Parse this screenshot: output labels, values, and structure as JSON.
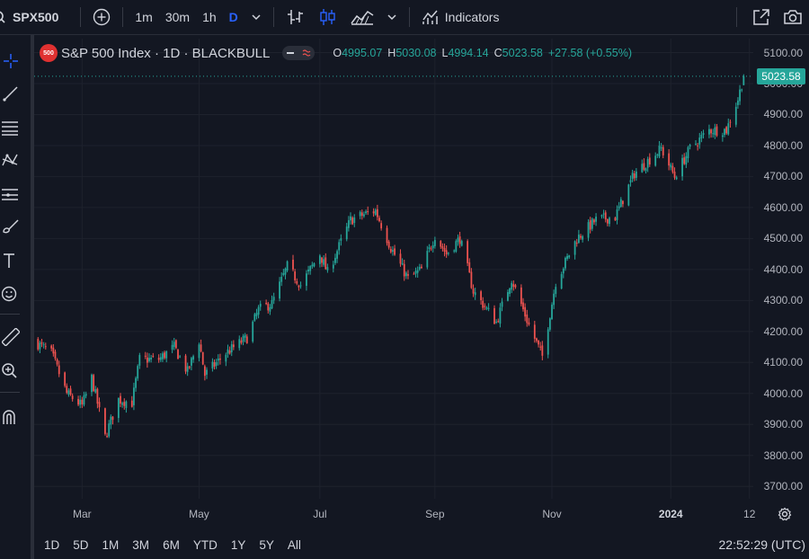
{
  "toolbar": {
    "symbol": "SPX500",
    "intervals": [
      "1m",
      "30m",
      "1h",
      "D"
    ],
    "active_interval": "D",
    "indicators_label": "Indicators"
  },
  "legend": {
    "badge": "500",
    "title": "S&P 500 Index · 1D · BLACKBULL",
    "open_label": "O",
    "open": "4995.07",
    "high_label": "H",
    "high": "5030.08",
    "low_label": "L",
    "low": "4994.14",
    "close_label": "C",
    "close": "5023.58",
    "change": "+27.58 (+0.55%)"
  },
  "last_price": "5023.58",
  "colors": {
    "up": "#26a69a",
    "down": "#ef5350",
    "background": "#131722",
    "grid": "#1e222d"
  },
  "left_tools": [
    "crosshair-icon",
    "trend-line-icon",
    "fib-icon",
    "pattern-icon",
    "forecast-icon",
    "brush-icon",
    "text-icon",
    "emoji-icon",
    "ruler-icon",
    "zoom-in-icon",
    "magnet-icon"
  ],
  "bottom": {
    "ranges": [
      "1D",
      "5D",
      "1M",
      "3M",
      "6M",
      "YTD",
      "1Y",
      "5Y",
      "All"
    ],
    "clock": "22:52:29 (UTC)"
  },
  "chart_data": {
    "type": "candlestick",
    "title": "S&P 500 Index · 1D · BLACKBULL",
    "ylim": [
      3660,
      5145
    ],
    "y_ticks": [
      5100,
      5000,
      4900,
      4800,
      4700,
      4600,
      4500,
      4400,
      4300,
      4200,
      4100,
      4000,
      3900,
      3800,
      3700
    ],
    "y_tick_labels": [
      "5100.00",
      "5000.00",
      "4900.00",
      "4800.00",
      "4700.00",
      "4600.00",
      "4500.00",
      "4400.00",
      "4300.00",
      "4200.00",
      "4100.00",
      "4000.00",
      "3900.00",
      "3800.00",
      "3700.00"
    ],
    "x_tick_labels": [
      {
        "label": "Mar",
        "date": "2023-03-01",
        "bold": false
      },
      {
        "label": "May",
        "date": "2023-05-01",
        "bold": false
      },
      {
        "label": "Jul",
        "date": "2023-07-03",
        "bold": false
      },
      {
        "label": "Sep",
        "date": "2023-09-01",
        "bold": false
      },
      {
        "label": "Nov",
        "date": "2023-11-01",
        "bold": false
      },
      {
        "label": "2024",
        "date": "2024-01-02",
        "bold": true
      },
      {
        "label": "12",
        "date": "2024-02-12",
        "bold": false
      }
    ],
    "x_range": [
      "2023-02-04",
      "2024-02-14"
    ],
    "close_anchors": [
      [
        "2023-02-06",
        4160
      ],
      [
        "2023-02-13",
        4130
      ],
      [
        "2023-02-21",
        4000
      ],
      [
        "2023-03-01",
        3960
      ],
      [
        "2023-03-06",
        4050
      ],
      [
        "2023-03-13",
        3860
      ],
      [
        "2023-03-20",
        3980
      ],
      [
        "2023-03-27",
        3970
      ],
      [
        "2023-03-31",
        4110
      ],
      [
        "2023-04-10",
        4110
      ],
      [
        "2023-04-18",
        4150
      ],
      [
        "2023-04-25",
        4070
      ],
      [
        "2023-05-01",
        4170
      ],
      [
        "2023-05-04",
        4060
      ],
      [
        "2023-05-15",
        4130
      ],
      [
        "2023-05-26",
        4180
      ],
      [
        "2023-06-01",
        4270
      ],
      [
        "2023-06-08",
        4290
      ],
      [
        "2023-06-16",
        4410
      ],
      [
        "2023-06-23",
        4350
      ],
      [
        "2023-07-03",
        4450
      ],
      [
        "2023-07-07",
        4390
      ],
      [
        "2023-07-19",
        4560
      ],
      [
        "2023-07-27",
        4580
      ],
      [
        "2023-08-01",
        4590
      ],
      [
        "2023-08-09",
        4470
      ],
      [
        "2023-08-18",
        4370
      ],
      [
        "2023-08-25",
        4400
      ],
      [
        "2023-09-01",
        4510
      ],
      [
        "2023-09-07",
        4450
      ],
      [
        "2023-09-14",
        4500
      ],
      [
        "2023-09-21",
        4330
      ],
      [
        "2023-10-03",
        4230
      ],
      [
        "2023-10-11",
        4370
      ],
      [
        "2023-10-20",
        4220
      ],
      [
        "2023-10-27",
        4120
      ],
      [
        "2023-11-03",
        4360
      ],
      [
        "2023-11-14",
        4500
      ],
      [
        "2023-11-24",
        4560
      ],
      [
        "2023-12-04",
        4570
      ],
      [
        "2023-12-14",
        4710
      ],
      [
        "2023-12-28",
        4790
      ],
      [
        "2024-01-04",
        4700
      ],
      [
        "2024-01-12",
        4790
      ],
      [
        "2024-01-22",
        4850
      ],
      [
        "2024-01-31",
        4850
      ],
      [
        "2024-02-06",
        4950
      ],
      [
        "2024-02-09",
        5023.58
      ]
    ],
    "last_candle": {
      "date": "2024-02-09",
      "open": 4995.07,
      "high": 5030.08,
      "low": 4994.14,
      "close": 5023.58
    }
  }
}
